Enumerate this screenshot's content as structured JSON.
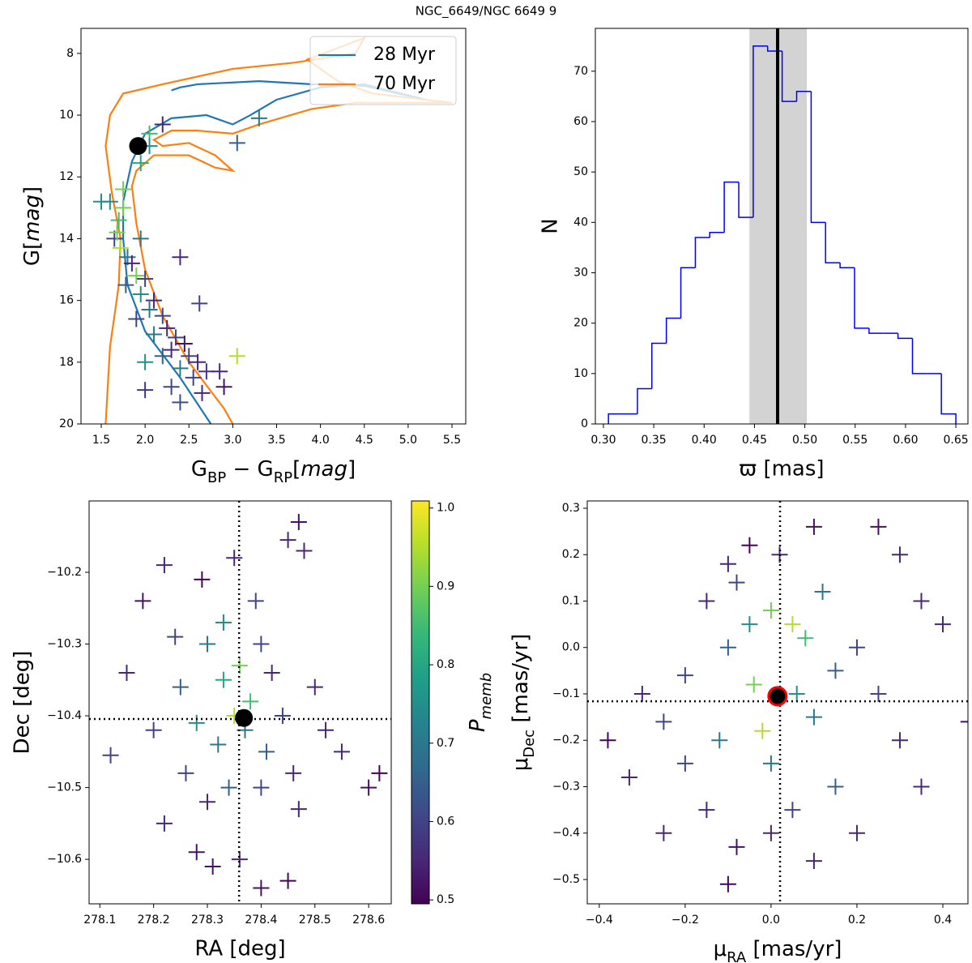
{
  "title": "NGC_6649/NGC 6649 9",
  "chart_data": [
    {
      "type": "scatter",
      "xlabel": [
        {
          "text": "G"
        },
        {
          "text": "BP",
          "style": "sub"
        },
        {
          "text": " − G"
        },
        {
          "text": "RP",
          "style": "sub"
        },
        {
          "text": "["
        },
        {
          "text": "mag",
          "style": "italic"
        },
        {
          "text": "]"
        }
      ],
      "ylabel": [
        {
          "text": "G["
        },
        {
          "text": "mag",
          "style": "italic"
        },
        {
          "text": "]"
        }
      ],
      "xlim": [
        1.269,
        5.657
      ],
      "ylim": [
        20,
        7.19
      ],
      "xticks": [
        1.5,
        {
          "value": 2,
          "label": "2.0"
        },
        2.5,
        {
          "value": 3,
          "label": "3.0"
        },
        3.5,
        {
          "value": 4,
          "label": "4.0"
        },
        4.5,
        {
          "value": 5,
          "label": "5.0"
        },
        5.5
      ],
      "yticks": [
        8,
        10,
        12,
        14,
        16,
        18,
        20
      ],
      "legend": "upper right",
      "lines": [
        {
          "name": "28 Myr",
          "color": "#1f77b4",
          "x": [
            2.75,
            2.4,
            2.0,
            1.8,
            1.75,
            1.75,
            1.85,
            2.0,
            2.3,
            2.7,
            3.0,
            3.2,
            3.5,
            4.0,
            4.5,
            5.2,
            4.5,
            3.9,
            3.3,
            2.6,
            2.4,
            2.3
          ],
          "y": [
            20,
            18.5,
            17.0,
            15.5,
            14,
            12.8,
            11.5,
            10.6,
            10.1,
            10.0,
            10.3,
            10.0,
            9.5,
            9.1,
            9.0,
            9.5,
            9.05,
            9.0,
            8.9,
            9.0,
            9.1,
            9.2
          ]
        },
        {
          "name": "70 Myr",
          "color": "#ff7f0e",
          "x": [
            1.55,
            1.6,
            1.7,
            1.72,
            1.62,
            1.55,
            1.6,
            1.75,
            2.2,
            3.0,
            3.7,
            4.4,
            4.5,
            3.85,
            4.2,
            4.6,
            5.5,
            4.4,
            3.9,
            3.3,
            3.0,
            2.6,
            2.3,
            2.1,
            2.2,
            2.5,
            2.8,
            3.0,
            2.8,
            2.5,
            2.1,
            1.9,
            1.85,
            1.9,
            2.0,
            2.2,
            2.5,
            2.9,
            3.0
          ],
          "y": [
            20,
            17.5,
            15.5,
            14,
            12.5,
            11,
            10,
            9.3,
            9.0,
            8.5,
            8.3,
            8.0,
            7.5,
            8.2,
            8.9,
            9.3,
            9.6,
            9.6,
            9.8,
            10.3,
            10.6,
            10.5,
            10.5,
            10.8,
            11.0,
            10.9,
            11.3,
            11.8,
            11.7,
            11.3,
            11.3,
            11.8,
            12.3,
            13.5,
            15.0,
            16.5,
            18.0,
            19.5,
            20
          ]
        }
      ],
      "points": {
        "x": [
          1.6,
          1.75,
          1.7,
          1.65,
          1.72,
          1.8,
          1.85,
          1.9,
          1.78,
          2.0,
          1.95,
          2.1,
          2.05,
          1.9,
          2.2,
          2.25,
          2.1,
          2.35,
          2.3,
          2.45,
          2.5,
          2.2,
          2.6,
          2.4,
          2.7,
          2.55,
          2.85,
          2.9,
          2.3,
          2.65,
          2.0,
          2.4,
          2.0,
          3.05,
          2.62,
          2.4,
          1.95,
          2.2,
          2.05,
          2.05,
          3.3,
          3.05,
          1.95,
          1.75,
          1.5,
          1.68
        ],
        "y": [
          12.8,
          13.0,
          13.4,
          14.0,
          14.3,
          14.6,
          14.8,
          15.2,
          15.5,
          15.3,
          15.8,
          16.0,
          16.3,
          16.6,
          16.5,
          16.9,
          17.1,
          17.2,
          17.6,
          17.4,
          17.8,
          17.8,
          18.0,
          18.2,
          18.3,
          18.5,
          18.3,
          18.8,
          18.8,
          19.0,
          18.9,
          19.3,
          18.0,
          17.8,
          16.1,
          14.6,
          14.0,
          10.3,
          10.6,
          11.0,
          10.1,
          10.9,
          11.55,
          12.4,
          12.8,
          13.8
        ],
        "pmemb": [
          0.75,
          0.9,
          0.85,
          0.6,
          0.95,
          0.7,
          0.55,
          0.9,
          0.65,
          0.6,
          0.75,
          0.55,
          0.7,
          0.6,
          0.6,
          0.55,
          0.7,
          0.6,
          0.55,
          0.52,
          0.6,
          0.65,
          0.55,
          0.7,
          0.58,
          0.6,
          0.55,
          0.52,
          0.6,
          0.55,
          0.58,
          0.62,
          0.75,
          0.95,
          0.6,
          0.55,
          0.7,
          0.55,
          0.85,
          0.75,
          0.7,
          0.65,
          0.8,
          0.9,
          0.75,
          0.9
        ]
      },
      "marker": {
        "x": 1.92,
        "y": 11.0,
        "color": "#000000"
      }
    },
    {
      "type": "histogram",
      "xlabel": "ϖ [mas]",
      "ylabel": "N",
      "xlim": [
        0.292,
        0.662
      ],
      "ylim": [
        0,
        78.5
      ],
      "xticks": [
        {
          "value": 0.3,
          "label": "0.30"
        },
        0.35,
        {
          "value": 0.4,
          "label": "0.40"
        },
        0.45,
        {
          "value": 0.5,
          "label": "0.50"
        },
        0.55,
        {
          "value": 0.6,
          "label": "0.60"
        },
        0.65
      ],
      "yticks": [
        0,
        10,
        20,
        30,
        40,
        50,
        60,
        70
      ],
      "color": "#0000ff",
      "bins": [
        0.305,
        0.3194,
        0.3338,
        0.3481,
        0.3625,
        0.3769,
        0.3913,
        0.4056,
        0.42,
        0.4344,
        0.4488,
        0.4631,
        0.4775,
        0.4919,
        0.5063,
        0.5206,
        0.535,
        0.5494,
        0.5638,
        0.5781,
        0.5925,
        0.6069,
        0.6213,
        0.6356,
        0.65
      ],
      "counts": [
        2,
        2,
        7,
        16,
        21,
        31,
        37,
        38,
        48,
        41,
        75,
        74,
        64,
        66,
        40,
        32,
        31,
        19,
        18,
        18,
        17,
        10,
        10,
        2
      ],
      "span": [
        0.445,
        0.502
      ],
      "span_color": "#d3d3d3",
      "vline": 0.473
    },
    {
      "type": "scatter",
      "xlabel": "RA [deg]",
      "ylabel": "Dec [deg]",
      "xlim": [
        278.08,
        278.642
      ],
      "ylim": [
        -10.662,
        -10.1006
      ],
      "xticks": [
        278.1,
        278.2,
        278.3,
        278.4,
        278.5,
        278.6
      ],
      "yticks": [
        {
          "value": -10.6,
          "label": "−10.6"
        },
        {
          "value": -10.5,
          "label": "−10.5"
        },
        {
          "value": -10.4,
          "label": "−10.4"
        },
        {
          "value": -10.3,
          "label": "−10.3"
        },
        {
          "value": -10.2,
          "label": "−10.2"
        }
      ],
      "points": {
        "x": [
          278.12,
          278.15,
          278.18,
          278.22,
          278.29,
          278.35,
          278.45,
          278.47,
          278.48,
          278.2,
          278.25,
          278.3,
          278.33,
          278.36,
          278.38,
          278.4,
          278.42,
          278.28,
          278.32,
          278.35,
          278.37,
          278.41,
          278.44,
          278.5,
          278.52,
          278.26,
          278.3,
          278.34,
          278.4,
          278.46,
          278.55,
          278.6,
          278.62,
          278.22,
          278.28,
          278.36,
          278.4,
          278.45,
          278.31,
          278.47,
          278.24,
          278.39,
          278.33
        ],
        "y": [
          -10.455,
          -10.34,
          -10.24,
          -10.19,
          -10.21,
          -10.18,
          -10.155,
          -10.13,
          -10.17,
          -10.42,
          -10.36,
          -10.3,
          -10.35,
          -10.33,
          -10.38,
          -10.3,
          -10.34,
          -10.41,
          -10.44,
          -10.4,
          -10.42,
          -10.45,
          -10.4,
          -10.36,
          -10.42,
          -10.48,
          -10.52,
          -10.5,
          -10.5,
          -10.48,
          -10.45,
          -10.5,
          -10.48,
          -10.55,
          -10.59,
          -10.6,
          -10.64,
          -10.63,
          -10.61,
          -10.53,
          -10.29,
          -10.24,
          -10.27
        ],
        "pmemb": [
          0.6,
          0.55,
          0.52,
          0.55,
          0.5,
          0.55,
          0.55,
          0.52,
          0.55,
          0.6,
          0.65,
          0.7,
          0.8,
          0.9,
          0.85,
          0.6,
          0.55,
          0.75,
          0.7,
          0.95,
          0.7,
          0.65,
          0.6,
          0.55,
          0.55,
          0.6,
          0.55,
          0.65,
          0.6,
          0.55,
          0.55,
          0.52,
          0.5,
          0.55,
          0.52,
          0.55,
          0.52,
          0.5,
          0.52,
          0.55,
          0.6,
          0.6,
          0.75
        ]
      },
      "vline": 278.359,
      "hline": -10.4045,
      "marker": {
        "x": 278.368,
        "y": -10.403,
        "color": "#000000"
      },
      "colorbar": {
        "label": [
          {
            "text": "P",
            "style": "italic"
          },
          {
            "text": "memb",
            "style": "subitalic"
          }
        ],
        "lim": [
          0.495,
          1.009
        ],
        "ticks": [
          0.5,
          0.6,
          0.7,
          0.8,
          0.9,
          {
            "value": 1,
            "label": "1.0"
          }
        ],
        "colormap": [
          "#440154",
          "#482878",
          "#3e4989",
          "#31688e",
          "#26828e",
          "#1f9e89",
          "#35b779",
          "#6ece58",
          "#b5de2b",
          "#fde725"
        ]
      }
    },
    {
      "type": "scatter",
      "xlabel": [
        {
          "text": "μ"
        },
        {
          "text": "RA",
          "style": "sub"
        },
        {
          "text": " [mas/yr]"
        }
      ],
      "ylabel": [
        {
          "text": "μ"
        },
        {
          "text": "Dec",
          "style": "sub"
        },
        {
          "text": " [mas/yr]"
        }
      ],
      "xlim": [
        -0.428,
        0.4585
      ],
      "ylim": [
        -0.5524,
        0.3157
      ],
      "xticks": [
        {
          "value": -0.4,
          "label": "−0.4"
        },
        {
          "value": -0.2,
          "label": "−0.2"
        },
        {
          "value": 0,
          "label": "0.0"
        },
        0.2,
        0.4
      ],
      "yticks": [
        {
          "value": -0.5,
          "label": "−0.5"
        },
        {
          "value": -0.4,
          "label": "−0.4"
        },
        {
          "value": -0.3,
          "label": "−0.3"
        },
        {
          "value": -0.2,
          "label": "−0.2"
        },
        {
          "value": -0.1,
          "label": "−0.1"
        },
        {
          "value": 0,
          "label": "0.0"
        },
        0.1,
        0.2,
        0.3
      ],
      "points": {
        "x": [
          -0.38,
          -0.33,
          -0.3,
          -0.25,
          -0.2,
          -0.15,
          -0.1,
          -0.05,
          0.02,
          0.1,
          0.25,
          0.3,
          0.35,
          0.4,
          0.46,
          -0.1,
          -0.05,
          0.0,
          0.05,
          0.08,
          -0.04,
          0.06,
          -0.02,
          0.1,
          0.15,
          0.2,
          0.25,
          0.3,
          0.35,
          -0.2,
          -0.15,
          -0.08,
          0.0,
          0.05,
          0.1,
          0.2,
          0.15,
          -0.1,
          -0.25,
          -0.12,
          0.0,
          0.12,
          -0.08
        ],
        "y": [
          -0.2,
          -0.28,
          -0.1,
          -0.16,
          -0.06,
          0.1,
          0.18,
          0.22,
          0.2,
          0.26,
          0.26,
          0.2,
          0.1,
          0.05,
          -0.16,
          0.0,
          0.05,
          0.08,
          0.05,
          0.02,
          -0.08,
          -0.1,
          -0.18,
          -0.15,
          -0.05,
          0.0,
          -0.1,
          -0.2,
          -0.3,
          -0.25,
          -0.35,
          -0.43,
          -0.4,
          -0.35,
          -0.46,
          -0.4,
          -0.3,
          -0.51,
          -0.4,
          -0.2,
          -0.25,
          0.12,
          0.14
        ],
        "pmemb": [
          0.5,
          0.55,
          0.55,
          0.6,
          0.6,
          0.55,
          0.55,
          0.5,
          0.55,
          0.52,
          0.52,
          0.55,
          0.55,
          0.55,
          0.52,
          0.65,
          0.75,
          0.9,
          0.95,
          0.85,
          0.9,
          0.75,
          0.95,
          0.7,
          0.65,
          0.6,
          0.6,
          0.55,
          0.55,
          0.6,
          0.55,
          0.52,
          0.55,
          0.6,
          0.55,
          0.55,
          0.65,
          0.5,
          0.55,
          0.7,
          0.7,
          0.7,
          0.6
        ]
      },
      "vline": 0.021,
      "hline": -0.116,
      "marker": {
        "x": 0.015,
        "y": -0.105,
        "color": "#000000",
        "edgecolor": "#ff0000"
      }
    }
  ]
}
